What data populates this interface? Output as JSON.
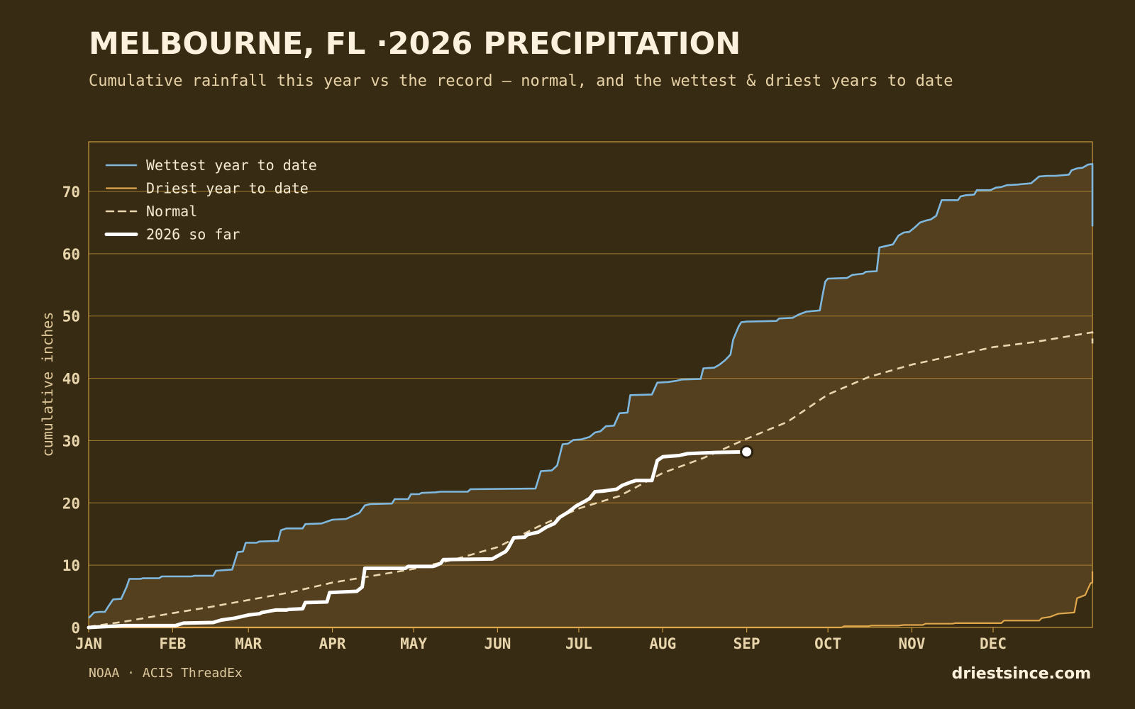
{
  "title": "MELBOURNE, FL ·2026 PRECIPITATION",
  "subtitle": "Cumulative rainfall this year vs the record — normal, and the wettest & driest years to date",
  "source": "NOAA · ACIS ThreadEx",
  "brand": "driestsince.com",
  "colors": {
    "background": "#382b14",
    "band_fill": "#54401f",
    "frame": "#c99a3e",
    "grid": "#b58a36",
    "wettest": "#7fb8de",
    "driest": "#e0a74c",
    "normal": "#e9d6ae",
    "current": "#ffffff"
  },
  "chart_data": {
    "type": "line",
    "ylabel": "cumulative inches",
    "xlabel": "",
    "x_unit": "day of year",
    "ylim": [
      0,
      78
    ],
    "xlim": [
      1,
      365
    ],
    "yticks": [
      0,
      10,
      20,
      30,
      40,
      50,
      60,
      70
    ],
    "grid": true,
    "legend_position": "top-left",
    "months": [
      {
        "label": "JAN",
        "day": 1
      },
      {
        "label": "FEB",
        "day": 32
      },
      {
        "label": "MAR",
        "day": 60
      },
      {
        "label": "APR",
        "day": 91
      },
      {
        "label": "MAY",
        "day": 121
      },
      {
        "label": "JUN",
        "day": 152
      },
      {
        "label": "JUL",
        "day": 182
      },
      {
        "label": "AUG",
        "day": 213
      },
      {
        "label": "SEP",
        "day": 244
      },
      {
        "label": "OCT",
        "day": 274
      },
      {
        "label": "NOV",
        "day": 305
      },
      {
        "label": "DEC",
        "day": 335
      }
    ],
    "series": [
      {
        "name": "Wettest year to date",
        "key": "wettest",
        "step": true,
        "points": [
          [
            1,
            1.5
          ],
          [
            3,
            2.4
          ],
          [
            5,
            2.5
          ],
          [
            7,
            2.5
          ],
          [
            8,
            3.2
          ],
          [
            10,
            4.5
          ],
          [
            13,
            4.6
          ],
          [
            15,
            6.5
          ],
          [
            16,
            7.8
          ],
          [
            20,
            7.8
          ],
          [
            21,
            7.9
          ],
          [
            27,
            7.9
          ],
          [
            28,
            8.2
          ],
          [
            39,
            8.2
          ],
          [
            40,
            8.3
          ],
          [
            47,
            8.3
          ],
          [
            48,
            9.1
          ],
          [
            54,
            9.3
          ],
          [
            56,
            12.1
          ],
          [
            58,
            12.2
          ],
          [
            59,
            13.6
          ],
          [
            63,
            13.6
          ],
          [
            64,
            13.8
          ],
          [
            71,
            13.9
          ],
          [
            72,
            15.6
          ],
          [
            74,
            15.9
          ],
          [
            80,
            15.9
          ],
          [
            81,
            16.6
          ],
          [
            87,
            16.7
          ],
          [
            91,
            17.3
          ],
          [
            96,
            17.4
          ],
          [
            98,
            17.8
          ],
          [
            101,
            18.4
          ],
          [
            103,
            19.6
          ],
          [
            105,
            19.8
          ],
          [
            113,
            19.9
          ],
          [
            114,
            20.6
          ],
          [
            119,
            20.6
          ],
          [
            120,
            21.4
          ],
          [
            123,
            21.4
          ],
          [
            124,
            21.6
          ],
          [
            129,
            21.7
          ],
          [
            131,
            21.8
          ],
          [
            141,
            21.8
          ],
          [
            142,
            22.2
          ],
          [
            166,
            22.3
          ],
          [
            168,
            25.1
          ],
          [
            172,
            25.2
          ],
          [
            174,
            26.0
          ],
          [
            176,
            29.4
          ],
          [
            178,
            29.5
          ],
          [
            180,
            30.1
          ],
          [
            183,
            30.2
          ],
          [
            186,
            30.6
          ],
          [
            188,
            31.3
          ],
          [
            190,
            31.5
          ],
          [
            192,
            32.3
          ],
          [
            195,
            32.4
          ],
          [
            197,
            34.4
          ],
          [
            200,
            34.5
          ],
          [
            201,
            37.3
          ],
          [
            209,
            37.4
          ],
          [
            211,
            39.3
          ],
          [
            215,
            39.4
          ],
          [
            218,
            39.6
          ],
          [
            220,
            39.8
          ],
          [
            227,
            39.9
          ],
          [
            228,
            41.6
          ],
          [
            232,
            41.7
          ],
          [
            234,
            42.2
          ],
          [
            236,
            42.9
          ],
          [
            238,
            43.8
          ],
          [
            239,
            46.2
          ],
          [
            241,
            48.3
          ],
          [
            242,
            49.0
          ],
          [
            244,
            49.1
          ],
          [
            255,
            49.2
          ],
          [
            256,
            49.6
          ],
          [
            261,
            49.7
          ],
          [
            263,
            50.2
          ],
          [
            266,
            50.7
          ],
          [
            271,
            50.9
          ],
          [
            272,
            53.3
          ],
          [
            273,
            55.5
          ],
          [
            274,
            56.0
          ],
          [
            281,
            56.1
          ],
          [
            283,
            56.6
          ],
          [
            287,
            56.8
          ],
          [
            288,
            57.1
          ],
          [
            292,
            57.2
          ],
          [
            293,
            61.0
          ],
          [
            295,
            61.2
          ],
          [
            298,
            61.5
          ],
          [
            300,
            62.9
          ],
          [
            302,
            63.4
          ],
          [
            304,
            63.5
          ],
          [
            306,
            64.2
          ],
          [
            308,
            65.0
          ],
          [
            310,
            65.3
          ],
          [
            312,
            65.5
          ],
          [
            314,
            66.1
          ],
          [
            316,
            68.6
          ],
          [
            322,
            68.6
          ],
          [
            323,
            69.2
          ],
          [
            325,
            69.4
          ],
          [
            328,
            69.5
          ],
          [
            329,
            70.2
          ],
          [
            334,
            70.2
          ],
          [
            336,
            70.6
          ],
          [
            338,
            70.7
          ],
          [
            340,
            71.0
          ],
          [
            344,
            71.1
          ],
          [
            346,
            71.2
          ],
          [
            349,
            71.3
          ],
          [
            352,
            72.4
          ],
          [
            355,
            72.5
          ],
          [
            358,
            72.5
          ],
          [
            363,
            72.7
          ],
          [
            364,
            73.4
          ],
          [
            366,
            73.7
          ],
          [
            368,
            73.8
          ],
          [
            370,
            74.3
          ],
          [
            377,
            74.4
          ],
          [
            378,
            74.3
          ],
          [
            380,
            74.3
          ],
          [
            381,
            74.4
          ],
          [
            382,
            64.4
          ]
        ]
      },
      {
        "name": "Driest year to date",
        "key": "driest",
        "step": true,
        "points": [
          [
            1,
            0
          ],
          [
            279,
            0
          ],
          [
            280,
            0.2
          ],
          [
            289,
            0.2
          ],
          [
            290,
            0.3
          ],
          [
            300,
            0.3
          ],
          [
            302,
            0.4
          ],
          [
            309,
            0.4
          ],
          [
            310,
            0.6
          ],
          [
            320,
            0.6
          ],
          [
            321,
            0.7
          ],
          [
            338,
            0.7
          ],
          [
            339,
            1.1
          ],
          [
            352,
            1.1
          ],
          [
            353,
            1.5
          ],
          [
            356,
            1.7
          ],
          [
            359,
            2.2
          ],
          [
            365,
            2.4
          ],
          [
            366,
            4.7
          ],
          [
            369,
            5.2
          ],
          [
            371,
            7.1
          ],
          [
            374,
            7.2
          ],
          [
            375,
            8.4
          ],
          [
            377,
            9.0
          ],
          [
            382,
            9.0
          ]
        ]
      },
      {
        "name": "Normal",
        "key": "normal",
        "dashed": true,
        "points": [
          [
            1,
            0.1
          ],
          [
            15,
            1.0
          ],
          [
            32,
            2.3
          ],
          [
            46,
            3.3
          ],
          [
            60,
            4.4
          ],
          [
            75,
            5.6
          ],
          [
            91,
            7.2
          ],
          [
            106,
            8.3
          ],
          [
            121,
            9.4
          ],
          [
            136,
            10.9
          ],
          [
            152,
            12.9
          ],
          [
            167,
            16.2
          ],
          [
            182,
            19.1
          ],
          [
            197,
            21.1
          ],
          [
            213,
            24.8
          ],
          [
            228,
            27.2
          ],
          [
            244,
            30.3
          ],
          [
            259,
            33.0
          ],
          [
            274,
            37.4
          ],
          [
            289,
            40.2
          ],
          [
            305,
            42.2
          ],
          [
            320,
            43.6
          ],
          [
            335,
            45.0
          ],
          [
            350,
            45.8
          ],
          [
            365,
            46.9
          ],
          [
            379,
            47.4
          ],
          [
            382,
            45.6
          ]
        ]
      },
      {
        "name": "2026 so far",
        "key": "current",
        "step": true,
        "endpoint": true,
        "points": [
          [
            1,
            0
          ],
          [
            14,
            0.3
          ],
          [
            33,
            0.3
          ],
          [
            36,
            0.7
          ],
          [
            47,
            0.8
          ],
          [
            50,
            1.2
          ],
          [
            55,
            1.5
          ],
          [
            60,
            2.0
          ],
          [
            64,
            2.2
          ],
          [
            65,
            2.4
          ],
          [
            70,
            2.8
          ],
          [
            74,
            2.8
          ],
          [
            75,
            2.9
          ],
          [
            80,
            3.0
          ],
          [
            81,
            4.0
          ],
          [
            89,
            4.1
          ],
          [
            90,
            5.6
          ],
          [
            100,
            5.8
          ],
          [
            102,
            6.5
          ],
          [
            103,
            9.5
          ],
          [
            118,
            9.5
          ],
          [
            119,
            9.8
          ],
          [
            128,
            9.8
          ],
          [
            129,
            9.9
          ],
          [
            131,
            10.3
          ],
          [
            132,
            10.9
          ],
          [
            150,
            11.0
          ],
          [
            155,
            12.2
          ],
          [
            156,
            12.8
          ],
          [
            158,
            14.4
          ],
          [
            162,
            14.5
          ],
          [
            163,
            14.9
          ],
          [
            167,
            15.3
          ],
          [
            170,
            16.1
          ],
          [
            173,
            16.7
          ],
          [
            175,
            17.7
          ],
          [
            178,
            18.5
          ],
          [
            181,
            19.5
          ],
          [
            184,
            20.2
          ],
          [
            186,
            20.7
          ],
          [
            188,
            21.8
          ],
          [
            191,
            21.9
          ],
          [
            196,
            22.2
          ],
          [
            198,
            22.8
          ],
          [
            201,
            23.3
          ],
          [
            203,
            23.6
          ],
          [
            209,
            23.6
          ],
          [
            210,
            25.2
          ],
          [
            211,
            26.8
          ],
          [
            213,
            27.4
          ],
          [
            219,
            27.6
          ],
          [
            222,
            27.9
          ],
          [
            227,
            28.0
          ],
          [
            233,
            28.1
          ],
          [
            244,
            28.2
          ]
        ]
      }
    ]
  }
}
